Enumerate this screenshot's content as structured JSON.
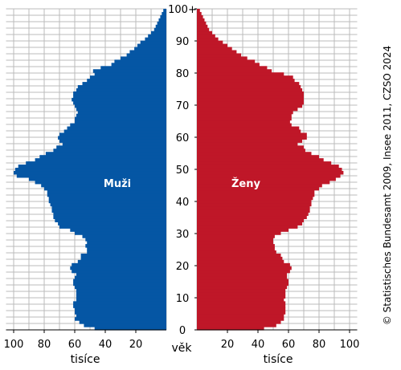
{
  "chart_data": {
    "type": "bar",
    "orientation": "horizontal",
    "layout": "population-pyramid",
    "colors": {
      "male": "#0556a4",
      "female": "#bf1728"
    },
    "grid": true,
    "age_axis": {
      "label": "věk",
      "ticks": [
        0,
        10,
        20,
        30,
        40,
        50,
        60,
        70,
        80,
        90,
        100
      ],
      "tick_labels": [
        "0",
        "10",
        "20",
        "30",
        "40",
        "50",
        "60",
        "70",
        "80",
        "90",
        "100+"
      ],
      "range": [
        0,
        100
      ]
    },
    "value_axis": {
      "unit": "tisíce",
      "max": 105,
      "ticks": [
        100,
        80,
        60,
        40,
        20
      ],
      "tick_labels_left": [
        "100",
        "80",
        "60",
        "40",
        "20"
      ],
      "tick_labels_right": [
        "20",
        "40",
        "60",
        "80",
        "100"
      ]
    },
    "series": [
      {
        "name": "Muži",
        "values": [
          47,
          54,
          57,
          60,
          59,
          60,
          60,
          61,
          61,
          59,
          59,
          59,
          59,
          60,
          61,
          61,
          60,
          59,
          62,
          63,
          62,
          58,
          56,
          56,
          52,
          52,
          53,
          52,
          53,
          55,
          60,
          63,
          70,
          71,
          73,
          74,
          74,
          75,
          75,
          76,
          77,
          77,
          78,
          78,
          80,
          82,
          86,
          90,
          98,
          100,
          99,
          97,
          92,
          86,
          83,
          79,
          74,
          72,
          68,
          70,
          71,
          70,
          67,
          65,
          63,
          60,
          60,
          59,
          58,
          59,
          60,
          61,
          62,
          61,
          61,
          59,
          58,
          55,
          52,
          50,
          47,
          48,
          43,
          36,
          34,
          30,
          26,
          24,
          21,
          19,
          17,
          14,
          12,
          10,
          8,
          7,
          6,
          5,
          4,
          3,
          2
        ]
      },
      {
        "name": "Ženy",
        "values": [
          44,
          52,
          55,
          57,
          57,
          58,
          58,
          58,
          58,
          57,
          58,
          58,
          58,
          59,
          60,
          60,
          59,
          59,
          61,
          62,
          61,
          57,
          56,
          55,
          52,
          51,
          51,
          50,
          50,
          51,
          55,
          60,
          66,
          69,
          70,
          72,
          73,
          74,
          74,
          75,
          75,
          76,
          77,
          77,
          80,
          82,
          87,
          91,
          94,
          96,
          95,
          93,
          88,
          83,
          80,
          75,
          71,
          70,
          66,
          69,
          72,
          72,
          68,
          67,
          62,
          61,
          62,
          62,
          63,
          66,
          69,
          70,
          70,
          70,
          70,
          69,
          68,
          67,
          64,
          63,
          57,
          49,
          46,
          41,
          38,
          33,
          29,
          26,
          23,
          20,
          17,
          14,
          12,
          10,
          8,
          7,
          6,
          5,
          4,
          3,
          2
        ]
      }
    ],
    "annotations": [
      "Muži",
      "Ženy"
    ],
    "source": "© Statistisches Bundesamt 2009, Insee 2011, CZSO 2024"
  }
}
